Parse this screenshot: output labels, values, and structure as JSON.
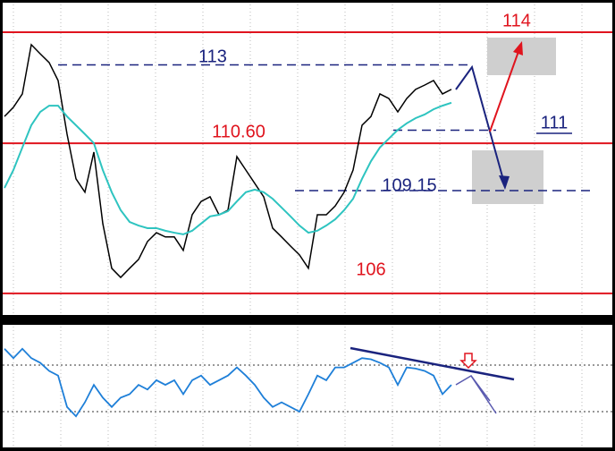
{
  "chart_data": {
    "type": "line",
    "ylim": [
      105.34,
      114.85
    ],
    "series": [
      {
        "color": "#000000",
        "values": [
          111.42,
          111.7,
          112.11,
          113.62,
          113.34,
          113.07,
          112.52,
          110.88,
          109.51,
          109.1,
          110.33,
          108.14,
          106.77,
          106.49,
          106.77,
          107.04,
          107.59,
          107.86,
          107.73,
          107.73,
          107.32,
          108.41,
          108.82,
          108.96,
          108.41,
          108.55,
          110.19,
          109.78,
          109.37,
          108.96,
          108.0,
          107.73,
          107.45,
          107.18,
          106.77,
          108.41,
          108.41,
          108.68,
          109.1,
          109.78,
          111.15,
          111.42,
          112.11,
          111.97,
          111.56,
          111.97,
          112.25,
          112.38,
          112.52,
          112.11,
          112.25
        ]
      },
      {
        "color": "#2ec4c0",
        "values": [
          109.23,
          109.78,
          110.47,
          111.15,
          111.56,
          111.75,
          111.75,
          111.42,
          111.15,
          110.88,
          110.6,
          109.78,
          109.1,
          108.55,
          108.19,
          108.08,
          108.0,
          108.0,
          107.92,
          107.86,
          107.81,
          107.92,
          108.14,
          108.36,
          108.41,
          108.52,
          108.82,
          109.1,
          109.18,
          109.1,
          108.9,
          108.63,
          108.36,
          108.08,
          107.86,
          107.92,
          108.08,
          108.27,
          108.55,
          108.9,
          109.51,
          110.05,
          110.47,
          110.74,
          111.01,
          111.21,
          111.37,
          111.48,
          111.64,
          111.75,
          111.84
        ]
      }
    ],
    "levels": [
      {
        "value": 114,
        "label": "114",
        "color": "#e0141e"
      },
      {
        "value": 113,
        "label": "113",
        "color": "#1a237e"
      },
      {
        "value": 111,
        "label": "111",
        "color": "#1a237e"
      },
      {
        "value": 110.6,
        "label": "110.60",
        "color": "#e0141e"
      },
      {
        "value": 109.15,
        "label": "109.15",
        "color": "#1a237e"
      },
      {
        "value": 106,
        "label": "106",
        "color": "#e0141e"
      }
    ],
    "rsi": {
      "ylim": [
        0,
        100
      ],
      "levels": [
        30,
        70
      ],
      "color": "#1e7fd8",
      "values": [
        84,
        76,
        84,
        76,
        72,
        65,
        61,
        34,
        26,
        38,
        53,
        42,
        34,
        42,
        45,
        53,
        49,
        57,
        53,
        57,
        45,
        57,
        61,
        53,
        57,
        61,
        68,
        61,
        53,
        42,
        34,
        38,
        34,
        30,
        45,
        61,
        57,
        68,
        68,
        72,
        76,
        75,
        72,
        68,
        53,
        68,
        67,
        65,
        61,
        45,
        53
      ]
    }
  }
}
